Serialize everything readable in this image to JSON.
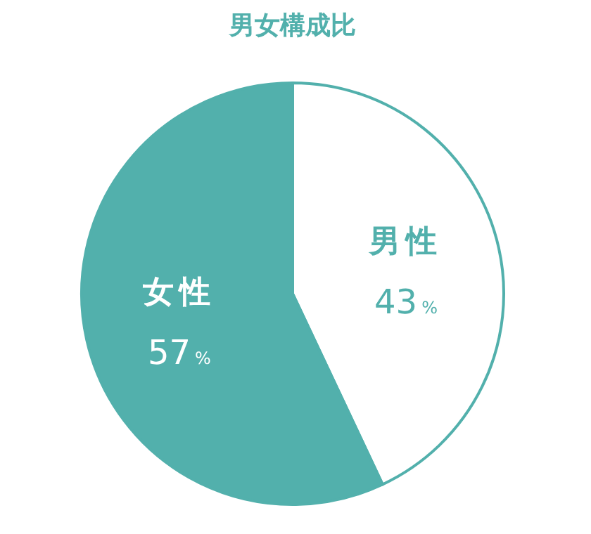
{
  "chart_data": {
    "type": "pie",
    "title": "男女構成比",
    "categories": [
      "男性",
      "女性"
    ],
    "values": [
      43,
      57
    ],
    "colors": [
      "#ffffff",
      "#52b0ac"
    ],
    "value_labels": [
      "43%",
      "57%"
    ]
  }
}
